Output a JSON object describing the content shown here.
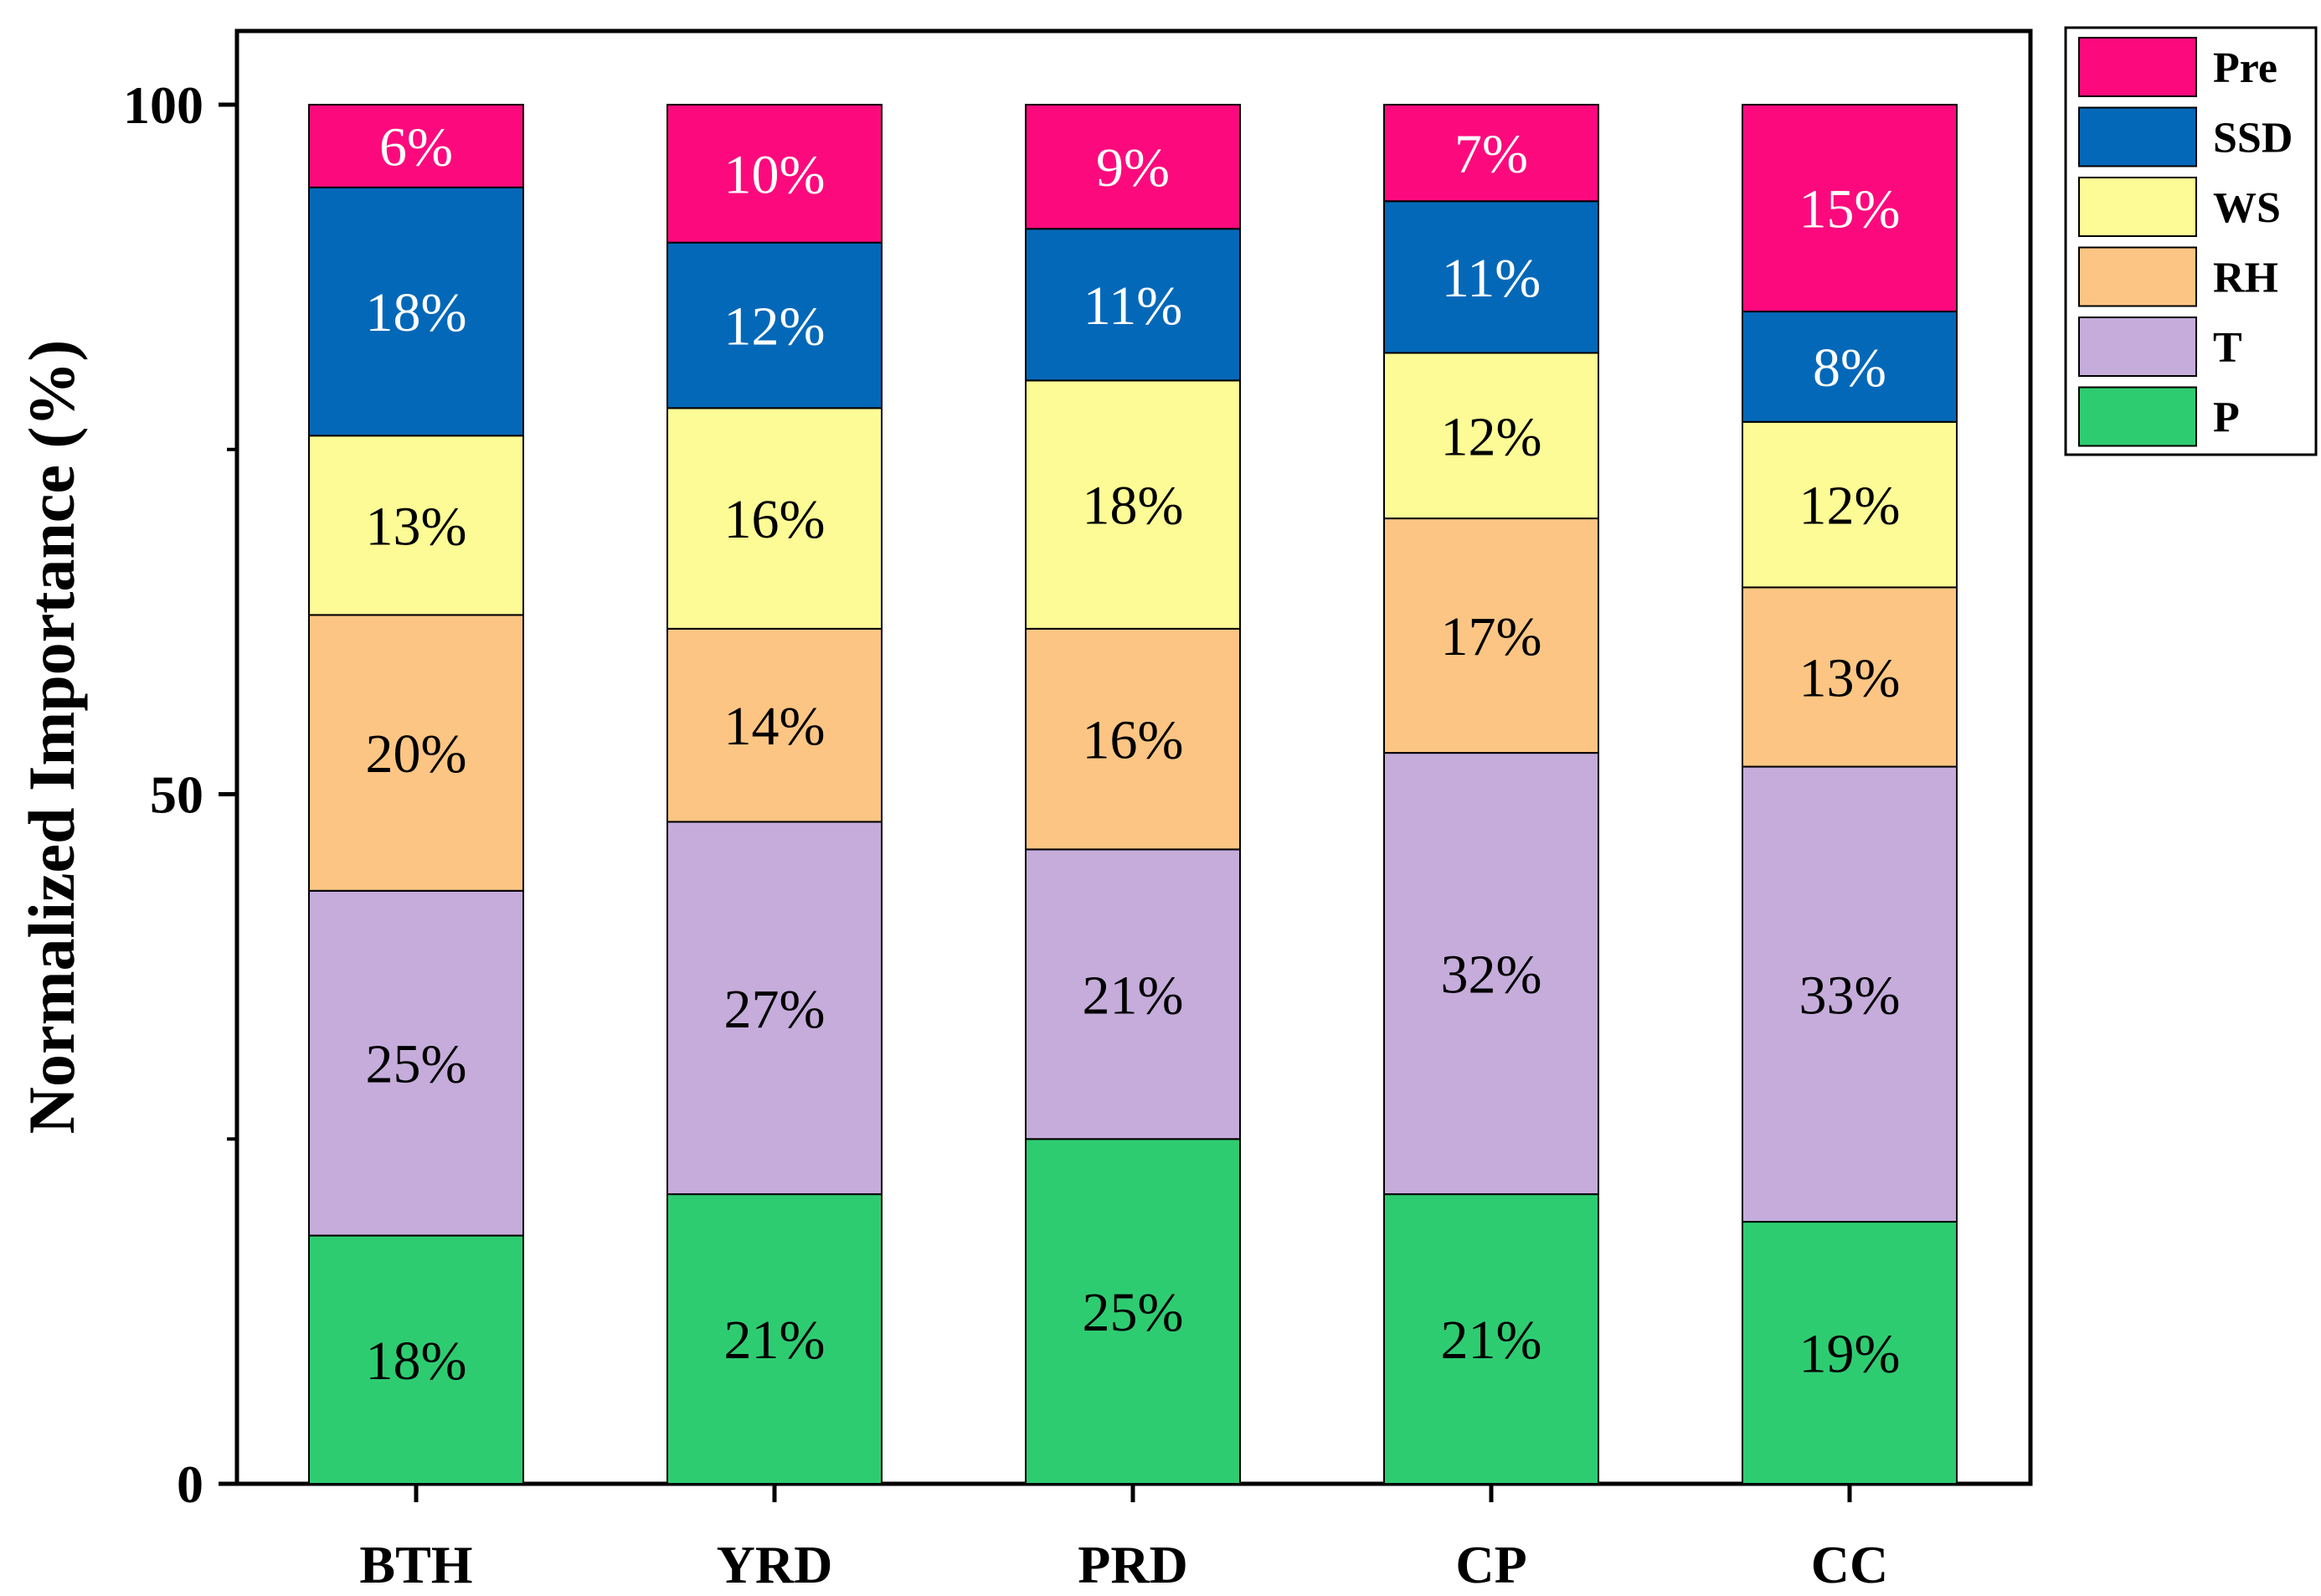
{
  "chart_data": {
    "type": "bar",
    "stacked": true,
    "title": "",
    "xlabel": "",
    "ylabel": "Normalized Importance (%)",
    "ylim": [
      0,
      104
    ],
    "yticks": [
      0,
      50,
      100
    ],
    "ytick_labels": [
      "0",
      "50",
      "100"
    ],
    "categories": [
      "BTH",
      "YRD",
      "PRD",
      "CP",
      "CC"
    ],
    "series": [
      {
        "name": "P",
        "color": "#2ecc71",
        "values": [
          18,
          21,
          25,
          21,
          19
        ],
        "labels": [
          "18%",
          "21%",
          "25%",
          "21%",
          "19%"
        ]
      },
      {
        "name": "T",
        "color": "#c5acdb",
        "values": [
          25,
          27,
          21,
          32,
          33
        ],
        "labels": [
          "25%",
          "27%",
          "21%",
          "32%",
          "33%"
        ]
      },
      {
        "name": "RH",
        "color": "#fcc583",
        "values": [
          20,
          14,
          16,
          17,
          13
        ],
        "labels": [
          "20%",
          "14%",
          "16%",
          "17%",
          "13%"
        ]
      },
      {
        "name": "WS",
        "color": "#fcfb95",
        "values": [
          13,
          16,
          18,
          12,
          12
        ],
        "labels": [
          "13%",
          "16%",
          "18%",
          "12%",
          "12%"
        ]
      },
      {
        "name": "SSD",
        "color": "#0468b8",
        "values": [
          18,
          12,
          11,
          11,
          8
        ],
        "labels": [
          "18%",
          "12%",
          "11%",
          "11%",
          "8%"
        ]
      },
      {
        "name": "Pre",
        "color": "#fc0a7d",
        "values": [
          6,
          10,
          9,
          7,
          15
        ],
        "labels": [
          "6%",
          "10%",
          "9%",
          "7%",
          "15%"
        ]
      }
    ],
    "legend": {
      "position": "top-right-outside",
      "order": [
        "Pre",
        "SSD",
        "WS",
        "RH",
        "T",
        "P"
      ]
    },
    "grid": false
  }
}
